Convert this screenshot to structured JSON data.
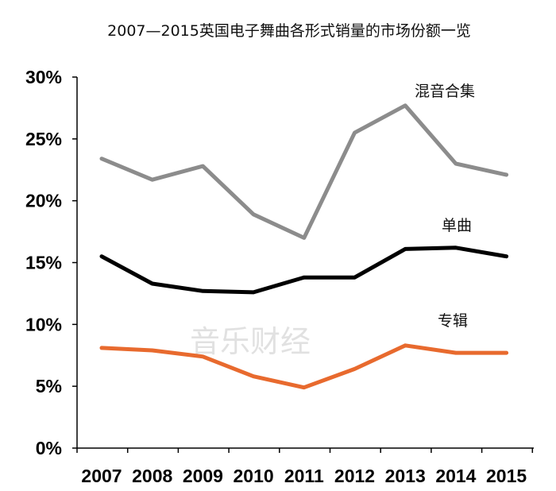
{
  "chart_data": {
    "type": "line",
    "title": "2007—2015英国电子舞曲各形式销量的市场份额一览",
    "xlabel": "",
    "ylabel": "",
    "categories": [
      "2007",
      "2008",
      "2009",
      "2010",
      "2011",
      "2012",
      "2013",
      "2014",
      "2015"
    ],
    "ylim": [
      0,
      30
    ],
    "yticks": [
      0,
      5,
      10,
      15,
      20,
      25,
      30
    ],
    "ytick_labels": [
      "0%",
      "5%",
      "10%",
      "15%",
      "20%",
      "25%",
      "30%"
    ],
    "grid": false,
    "legend": "inline labels next to lines",
    "series": [
      {
        "name": "混音合集",
        "color": "#8c8c8c",
        "values": [
          23.4,
          21.7,
          22.8,
          18.9,
          17.0,
          25.5,
          27.7,
          23.0,
          22.1
        ]
      },
      {
        "name": "单曲",
        "color": "#000000",
        "values": [
          15.5,
          13.3,
          12.7,
          12.6,
          13.8,
          13.8,
          16.1,
          16.2,
          15.5
        ]
      },
      {
        "name": "专辑",
        "color": "#e86a2e",
        "values": [
          8.1,
          7.9,
          7.4,
          5.8,
          4.9,
          6.4,
          8.3,
          7.7,
          7.7
        ]
      }
    ],
    "watermark": "音乐财经"
  }
}
